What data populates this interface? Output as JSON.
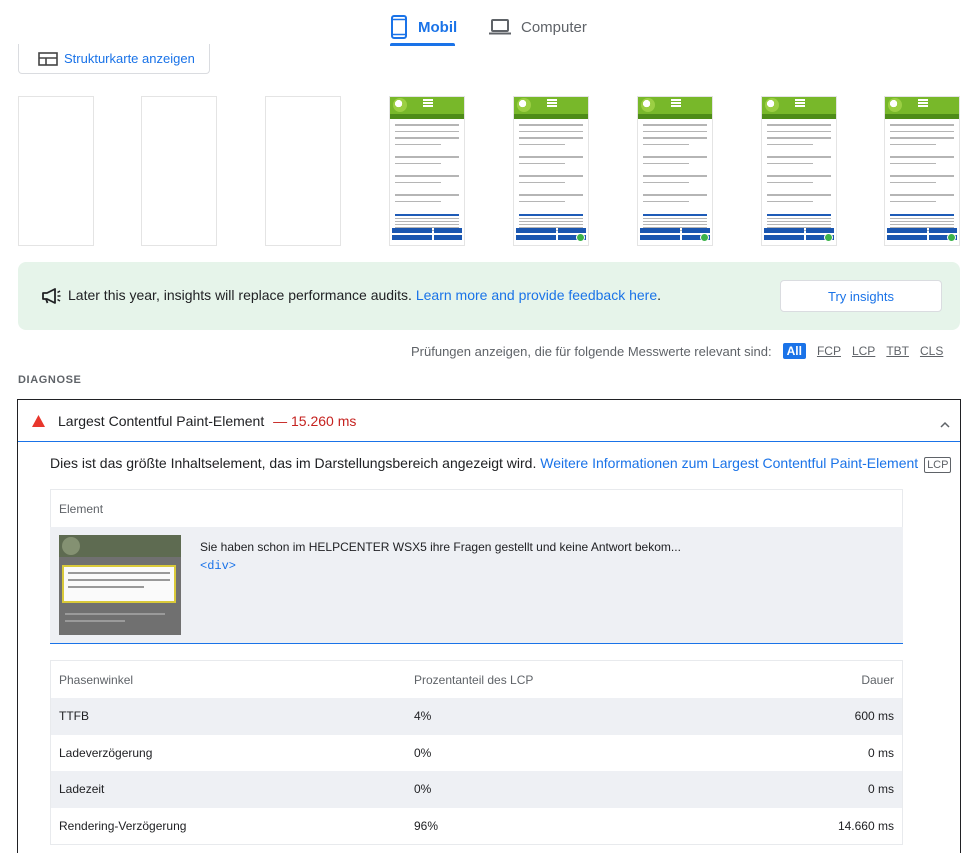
{
  "tabs": {
    "mobile": "Mobil",
    "desktop": "Computer"
  },
  "treemap_button": "Strukturkarte anzeigen",
  "insight": {
    "message": "Later this year, insights will replace performance audits.",
    "link": "Learn more and provide feedback here",
    "period": ".",
    "button": "Try insights"
  },
  "filter": {
    "label": "Prüfungen anzeigen, die für folgende Messwerte relevant sind:",
    "options": [
      "All",
      "FCP",
      "LCP",
      "TBT",
      "CLS"
    ],
    "selected": "All"
  },
  "section_title": "DIAGNOSE",
  "audit": {
    "title": "Largest Contentful Paint-Element",
    "value": "— 15.260 ms",
    "description": "Dies ist das größte Inhaltselement, das im Darstellungsbereich angezeigt wird.",
    "link": "Weitere Informationen zum Largest Contentful Paint-Element",
    "badge": "LCP",
    "element_header": "Element",
    "element_text": "Sie haben schon im HELPCENTER WSX5 ihre Fragen gestellt und keine Antwort bekom...",
    "element_code": "<div>",
    "phases": {
      "headers": [
        "Phasenwinkel",
        "Prozentanteil des LCP",
        "Dauer"
      ],
      "rows": [
        [
          "TTFB",
          "4%",
          "600 ms"
        ],
        [
          "Ladeverzögerung",
          "0%",
          "0 ms"
        ],
        [
          "Ladezeit",
          "0%",
          "0 ms"
        ],
        [
          "Rendering-Verzögerung",
          "96%",
          "14.660 ms"
        ]
      ]
    }
  },
  "colors": {
    "accent": "#1a73e8",
    "warning": "#c5221f",
    "insight_bg": "#e6f4ea"
  }
}
